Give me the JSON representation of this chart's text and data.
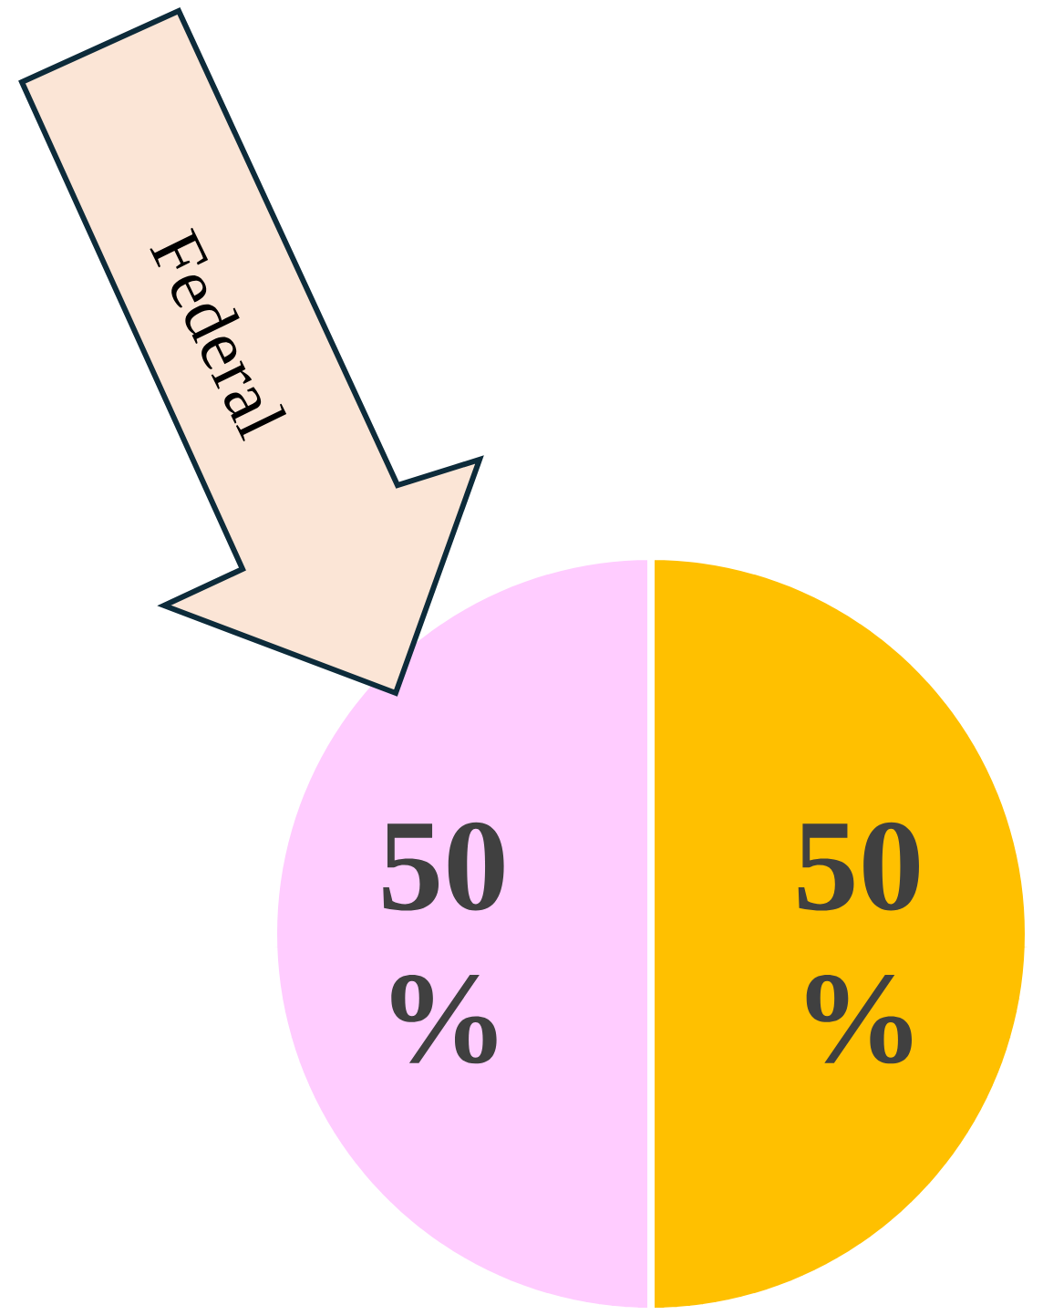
{
  "chart_data": {
    "type": "pie",
    "categories": [
      null,
      "Federal"
    ],
    "values": [
      50,
      50
    ],
    "colors": [
      "#ffc000",
      "#ffccff"
    ],
    "value_labels": [
      "50 %",
      "50 %"
    ]
  }
}
